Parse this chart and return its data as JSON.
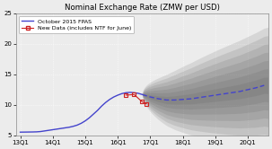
{
  "title": "Nominal Exchange Rate (ZMW per USD)",
  "ylim": [
    5,
    25
  ],
  "yticks": [
    5,
    10,
    15,
    20,
    25
  ],
  "background_color": "#ececec",
  "grid_color": "white",
  "legend_fpas_label": "October 2015 FPAS",
  "legend_new_label": "New Data (includes NTF for June)",
  "fpas_color": "#4444cc",
  "new_data_color": "#cc2222",
  "xtick_labels": [
    "13Q1",
    "14Q1",
    "15Q1",
    "16Q1",
    "17Q1",
    "18Q1",
    "19Q1",
    "20Q1"
  ],
  "xtick_pos": [
    0,
    4,
    8,
    12,
    16,
    20,
    24,
    28
  ],
  "xlim": [
    -0.5,
    30.5
  ],
  "blue_hist_x": [
    0,
    0.5,
    1,
    1.5,
    2,
    2.5,
    3,
    3.5,
    4,
    4.5,
    5,
    5.5,
    6,
    6.5,
    7,
    7.5,
    8,
    8.5,
    9,
    9.5,
    10,
    10.5,
    11,
    11.5,
    12,
    12.5,
    13,
    13.5,
    14,
    14.5,
    15
  ],
  "blue_hist_y": [
    5.55,
    5.56,
    5.57,
    5.58,
    5.6,
    5.65,
    5.75,
    5.85,
    5.95,
    6.05,
    6.15,
    6.25,
    6.35,
    6.5,
    6.7,
    7.0,
    7.4,
    7.9,
    8.5,
    9.1,
    9.8,
    10.4,
    10.9,
    11.3,
    11.6,
    11.85,
    12.0,
    12.05,
    12.0,
    11.9,
    11.7
  ],
  "blue_forecast_x": [
    15,
    16,
    17,
    18,
    19,
    20,
    21,
    22,
    23,
    24,
    25,
    26,
    27,
    28,
    29,
    30
  ],
  "blue_forecast_y": [
    11.7,
    11.3,
    11.0,
    10.8,
    10.8,
    10.9,
    11.0,
    11.2,
    11.4,
    11.6,
    11.8,
    12.0,
    12.2,
    12.5,
    12.8,
    13.2
  ],
  "new_data_x": [
    13,
    14,
    15,
    15.5
  ],
  "new_data_y": [
    11.6,
    11.7,
    10.5,
    10.2
  ],
  "fan_start_x": 15,
  "fan_end_x": 30.5,
  "fan_spread_end": 9.5,
  "fan_num_bands": 7,
  "fan_color": "#555555",
  "fan_alpha_per_band": 0.14
}
